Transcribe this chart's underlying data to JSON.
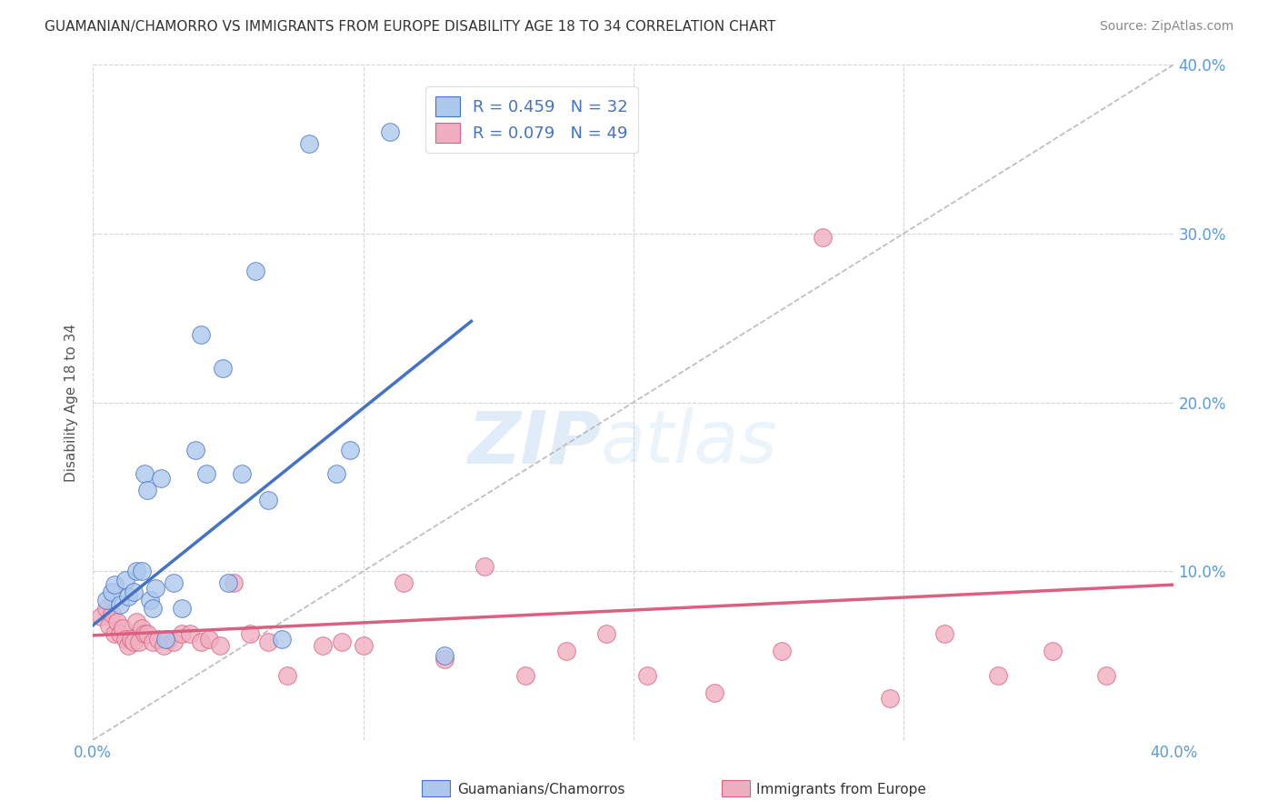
{
  "title": "GUAMANIAN/CHAMORRO VS IMMIGRANTS FROM EUROPE DISABILITY AGE 18 TO 34 CORRELATION CHART",
  "source": "Source: ZipAtlas.com",
  "ylabel": "Disability Age 18 to 34",
  "xlim": [
    0.0,
    0.4
  ],
  "ylim": [
    0.0,
    0.4
  ],
  "xticks": [
    0.0,
    0.1,
    0.2,
    0.3,
    0.4
  ],
  "yticks": [
    0.0,
    0.1,
    0.2,
    0.3,
    0.4
  ],
  "xticklabels_bottom": [
    "0.0%",
    "",
    "",
    "",
    "40.0%"
  ],
  "right_yticklabels": [
    "",
    "10.0%",
    "20.0%",
    "30.0%",
    "40.0%"
  ],
  "legend_label1": "Guamanians/Chamorros",
  "legend_label2": "Immigrants from Europe",
  "R1": 0.459,
  "N1": 32,
  "R2": 0.079,
  "N2": 49,
  "color1": "#adc8ed",
  "color2": "#f0afc0",
  "line_color1": "#4472c4",
  "line_color2": "#d96080",
  "watermark_zip": "ZIP",
  "watermark_atlas": "atlas",
  "background_color": "#ffffff",
  "grid_color": "#d0d0d0",
  "blue_scatter_x": [
    0.005,
    0.007,
    0.008,
    0.01,
    0.012,
    0.013,
    0.015,
    0.016,
    0.018,
    0.019,
    0.02,
    0.021,
    0.022,
    0.023,
    0.025,
    0.027,
    0.03,
    0.033,
    0.038,
    0.04,
    0.042,
    0.048,
    0.05,
    0.055,
    0.06,
    0.065,
    0.07,
    0.08,
    0.09,
    0.095,
    0.11,
    0.13
  ],
  "blue_scatter_y": [
    0.083,
    0.088,
    0.092,
    0.08,
    0.095,
    0.085,
    0.088,
    0.1,
    0.1,
    0.158,
    0.148,
    0.083,
    0.078,
    0.09,
    0.155,
    0.06,
    0.093,
    0.078,
    0.172,
    0.24,
    0.158,
    0.22,
    0.093,
    0.158,
    0.278,
    0.142,
    0.06,
    0.353,
    0.158,
    0.172,
    0.36,
    0.05
  ],
  "pink_scatter_x": [
    0.003,
    0.005,
    0.006,
    0.007,
    0.008,
    0.009,
    0.01,
    0.011,
    0.012,
    0.013,
    0.014,
    0.015,
    0.016,
    0.017,
    0.018,
    0.019,
    0.02,
    0.022,
    0.024,
    0.026,
    0.028,
    0.03,
    0.033,
    0.036,
    0.04,
    0.043,
    0.047,
    0.052,
    0.058,
    0.065,
    0.072,
    0.085,
    0.092,
    0.1,
    0.115,
    0.13,
    0.145,
    0.16,
    0.175,
    0.19,
    0.205,
    0.23,
    0.255,
    0.27,
    0.295,
    0.315,
    0.335,
    0.355,
    0.375
  ],
  "pink_scatter_y": [
    0.073,
    0.078,
    0.068,
    0.075,
    0.063,
    0.07,
    0.063,
    0.066,
    0.06,
    0.056,
    0.06,
    0.058,
    0.07,
    0.058,
    0.066,
    0.063,
    0.063,
    0.058,
    0.06,
    0.056,
    0.06,
    0.058,
    0.063,
    0.063,
    0.058,
    0.06,
    0.056,
    0.093,
    0.063,
    0.058,
    0.038,
    0.056,
    0.058,
    0.056,
    0.093,
    0.048,
    0.103,
    0.038,
    0.053,
    0.063,
    0.038,
    0.028,
    0.053,
    0.298,
    0.025,
    0.063,
    0.038,
    0.053,
    0.038
  ],
  "blue_line_x": [
    0.0,
    0.14
  ],
  "blue_line_y": [
    0.068,
    0.248
  ],
  "pink_line_x": [
    0.0,
    0.4
  ],
  "pink_line_y": [
    0.062,
    0.092
  ]
}
